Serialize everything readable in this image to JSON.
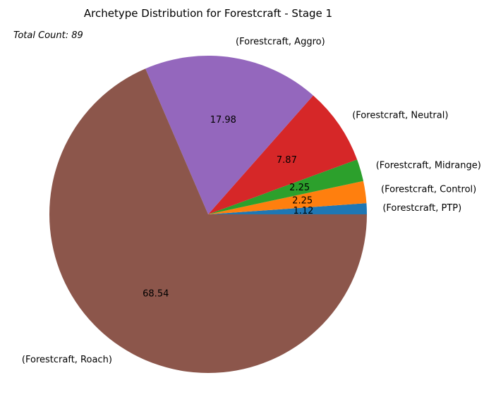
{
  "chart_data": {
    "type": "pie",
    "title": "Archetype Distribution for Forestcraft - Stage 1",
    "annotation": "Total Count: 89",
    "slices": [
      {
        "label": "(Forestcraft, PTP)",
        "value": 1.12,
        "display": "1.12",
        "color": "#1f77b4"
      },
      {
        "label": "(Forestcraft, Control)",
        "value": 2.25,
        "display": "2.25",
        "color": "#ff7f0e"
      },
      {
        "label": "(Forestcraft, Midrange)",
        "value": 2.25,
        "display": "2.25",
        "color": "#2ca02c"
      },
      {
        "label": "(Forestcraft, Neutral)",
        "value": 7.87,
        "display": "7.87",
        "color": "#d62728"
      },
      {
        "label": "(Forestcraft, Aggro)",
        "value": 17.98,
        "display": "17.98",
        "color": "#9467bd"
      },
      {
        "label": "(Forestcraft, Roach)",
        "value": 68.54,
        "display": "68.54",
        "color": "#8c564b"
      }
    ],
    "start_angle_deg": 0,
    "direction": "counterclockwise"
  }
}
